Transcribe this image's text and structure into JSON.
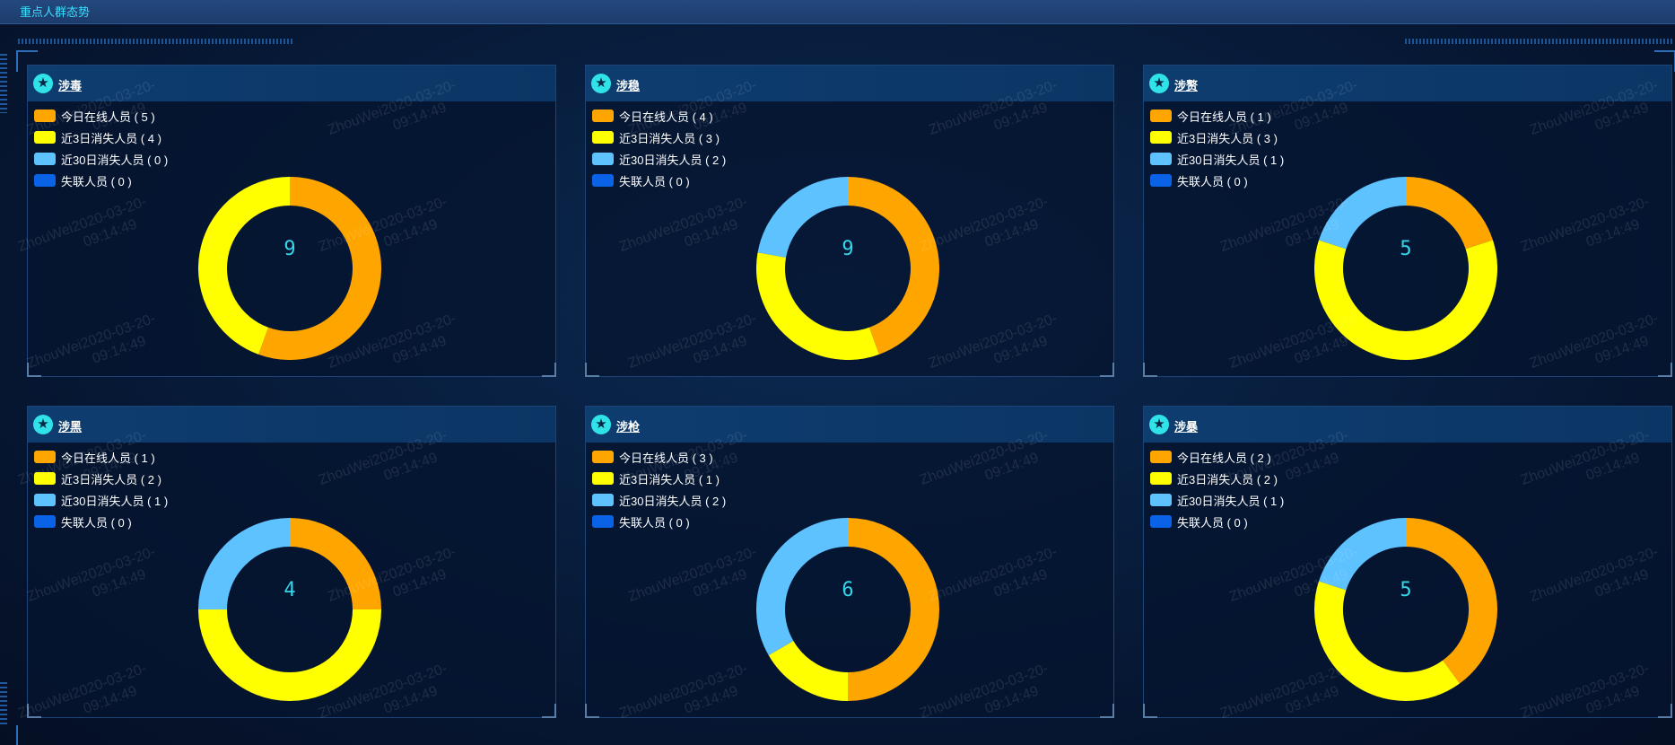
{
  "app": {
    "title": "重点人群态势"
  },
  "colors": {
    "online": "#ffa500",
    "recent3": "#ffff00",
    "recent30": "#5ec2ff",
    "lost": "#0a63e6",
    "accent": "#35d6e8"
  },
  "watermark": {
    "line1": "ZhouWei2020-03-20-",
    "line2": "09:14:49"
  },
  "panels": [
    {
      "title": "涉毒",
      "total": "9",
      "legend": [
        {
          "label": "今日在线人员 ( 5 )",
          "value": 5
        },
        {
          "label": "近3日消失人员 ( 4 )",
          "value": 4
        },
        {
          "label": "近30日消失人员 ( 0 )",
          "value": 0
        },
        {
          "label": "失联人员 ( 0 )",
          "value": 0
        }
      ]
    },
    {
      "title": "涉稳",
      "total": "9",
      "legend": [
        {
          "label": "今日在线人员 ( 4 )",
          "value": 4
        },
        {
          "label": "近3日消失人员 ( 3 )",
          "value": 3
        },
        {
          "label": "近30日消失人员 ( 2 )",
          "value": 2
        },
        {
          "label": "失联人员 ( 0 )",
          "value": 0
        }
      ]
    },
    {
      "title": "涉赘",
      "total": "5",
      "legend": [
        {
          "label": "今日在线人员 ( 1 )",
          "value": 1
        },
        {
          "label": "近3日消失人员 ( 3 )",
          "value": 3
        },
        {
          "label": "近30日消失人员 ( 1 )",
          "value": 1
        },
        {
          "label": "失联人员 ( 0 )",
          "value": 0
        }
      ]
    },
    {
      "title": "涉黑",
      "total": "4",
      "legend": [
        {
          "label": "今日在线人员 ( 1 )",
          "value": 1
        },
        {
          "label": "近3日消失人员 ( 2 )",
          "value": 2
        },
        {
          "label": "近30日消失人员 ( 1 )",
          "value": 1
        },
        {
          "label": "失联人员 ( 0 )",
          "value": 0
        }
      ]
    },
    {
      "title": "涉枪",
      "total": "6",
      "legend": [
        {
          "label": "今日在线人员 ( 3 )",
          "value": 3
        },
        {
          "label": "近3日消失人员 ( 1 )",
          "value": 1
        },
        {
          "label": "近30日消失人员 ( 2 )",
          "value": 2
        },
        {
          "label": "失联人员 ( 0 )",
          "value": 0
        }
      ]
    },
    {
      "title": "涉暴",
      "total": "5",
      "legend": [
        {
          "label": "今日在线人员 ( 2 )",
          "value": 2
        },
        {
          "label": "近3日消失人员 ( 2 )",
          "value": 2
        },
        {
          "label": "近30日消失人员 ( 1 )",
          "value": 1
        },
        {
          "label": "失联人员 ( 0 )",
          "value": 0
        }
      ]
    }
  ]
}
